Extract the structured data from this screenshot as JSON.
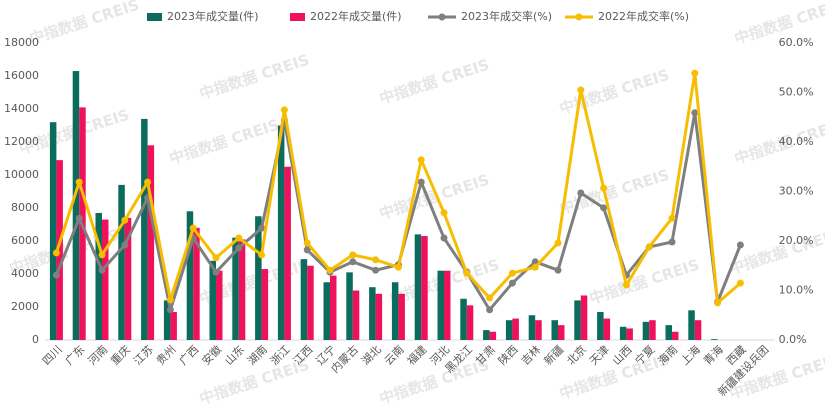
{
  "chart_data": {
    "type": "bar_line",
    "watermark": "中指数据 CREIS",
    "categories": [
      "四川",
      "广东",
      "河南",
      "重庆",
      "江苏",
      "贵州",
      "广西",
      "安徽",
      "山东",
      "湖南",
      "浙江",
      "江西",
      "辽宁",
      "内蒙古",
      "湖北",
      "云南",
      "福建",
      "河北",
      "黑龙江",
      "甘肃",
      "陕西",
      "吉林",
      "新疆",
      "北京",
      "天津",
      "山西",
      "宁夏",
      "海南",
      "上海",
      "青海",
      "西藏",
      "新疆建设兵团"
    ],
    "series": [
      {
        "name": "2023年成交量(件)",
        "color": "#0b6b5d",
        "kind": "bar",
        "axis": "y",
        "values": [
          13200,
          16300,
          7700,
          9400,
          13400,
          2400,
          7800,
          4800,
          6200,
          7500,
          13000,
          4900,
          3500,
          4100,
          3200,
          3500,
          6400,
          4200,
          2500,
          600,
          1200,
          1500,
          1200,
          2400,
          1700,
          800,
          1100,
          900,
          1800,
          50,
          0,
          0
        ]
      },
      {
        "name": "2022年成交量(件)",
        "color": "#f0115c",
        "kind": "bar",
        "axis": "y",
        "values": [
          10900,
          14100,
          7300,
          7400,
          11800,
          1700,
          6800,
          4200,
          6100,
          4300,
          10500,
          4500,
          3900,
          3000,
          2800,
          2800,
          6300,
          4200,
          2100,
          500,
          1300,
          1200,
          900,
          2700,
          1300,
          700,
          1200,
          500,
          1200,
          0,
          0,
          0
        ]
      },
      {
        "name": "2023年成交率(%)",
        "color": "#7f7f7f",
        "kind": "line",
        "axis": "y2",
        "values": [
          13.1,
          24.6,
          14.1,
          19.2,
          28.7,
          6.1,
          20.6,
          13.7,
          18.6,
          22.6,
          44.4,
          18.2,
          13.7,
          15.8,
          14.1,
          15.2,
          31.9,
          20.6,
          13.7,
          6.1,
          11.5,
          15.8,
          14.1,
          29.7,
          26.7,
          13.1,
          18.8,
          19.8,
          45.9,
          7.7,
          19.2,
          null
        ]
      },
      {
        "name": "2022年成交率(%)",
        "color": "#f7bd00",
        "kind": "line",
        "axis": "y2",
        "values": [
          17.6,
          31.9,
          17.2,
          24.2,
          31.9,
          8.1,
          22.6,
          16.6,
          20.6,
          17.2,
          46.5,
          19.6,
          14.1,
          17.2,
          16.2,
          14.7,
          36.4,
          25.7,
          13.5,
          8.5,
          13.5,
          14.7,
          19.6,
          50.5,
          30.7,
          11.1,
          18.8,
          24.6,
          53.9,
          7.5,
          11.5,
          null
        ]
      }
    ],
    "ylim": [
      0,
      18000
    ],
    "yticks": [
      0,
      2000,
      4000,
      6000,
      8000,
      10000,
      12000,
      14000,
      16000,
      18000
    ],
    "y2lim": [
      0,
      60
    ],
    "y2ticks": [
      {
        "value": 0,
        "label": "0.0%"
      },
      {
        "value": 10,
        "label": "10.0%"
      },
      {
        "value": 20,
        "label": "20.0%"
      },
      {
        "value": 30,
        "label": "30.0%"
      },
      {
        "value": 40,
        "label": "40.0%"
      },
      {
        "value": 50,
        "label": "50.0%"
      },
      {
        "value": 60,
        "label": "60.0%"
      }
    ],
    "legend": "top"
  }
}
